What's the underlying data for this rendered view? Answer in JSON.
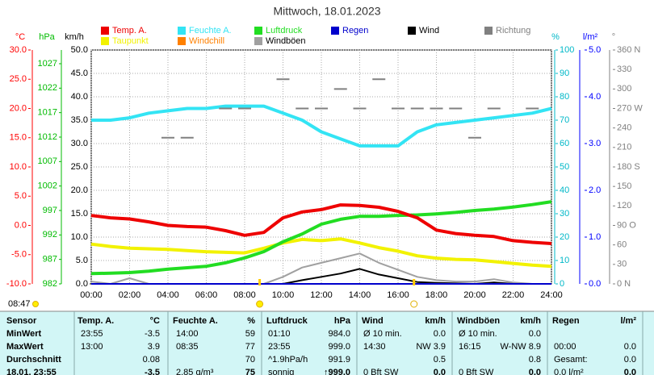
{
  "chart_data": {
    "type": "line",
    "title": "Mittwoch, 18.01.2023",
    "x": [
      0,
      1,
      2,
      3,
      4,
      5,
      6,
      7,
      8,
      9,
      10,
      11,
      12,
      13,
      14,
      15,
      16,
      17,
      18,
      19,
      20,
      21,
      22,
      23,
      24
    ],
    "xlim": [
      0,
      24
    ],
    "xticks": [
      {
        "value": 0,
        "label": "00:00"
      },
      {
        "value": 2,
        "label": "02:00"
      },
      {
        "value": 4,
        "label": "04:00"
      },
      {
        "value": 6,
        "label": "06:00"
      },
      {
        "value": 8,
        "label": "08:00"
      },
      {
        "value": 10,
        "label": "10:00"
      },
      {
        "value": 12,
        "label": "12:00"
      },
      {
        "value": 14,
        "label": "14:00"
      },
      {
        "value": 16,
        "label": "16:00"
      },
      {
        "value": 18,
        "label": "18:00"
      },
      {
        "value": 20,
        "label": "20:00"
      },
      {
        "value": 22,
        "label": "22:00"
      },
      {
        "value": 24,
        "label": "24:00"
      }
    ],
    "grid": true,
    "axes": {
      "temp": {
        "label": "°C",
        "color": "#ff0000",
        "ylim": [
          -10,
          30
        ],
        "yticks": [
          {
            "value": -10,
            "label": "-10.0"
          },
          {
            "value": -5,
            "label": "-5.0"
          },
          {
            "value": 0,
            "label": "0.0"
          },
          {
            "value": 5,
            "label": "5.0"
          },
          {
            "value": 10,
            "label": "10.0"
          },
          {
            "value": 15,
            "label": "15.0"
          },
          {
            "value": 20,
            "label": "20.0"
          },
          {
            "value": 25,
            "label": "25.0"
          },
          {
            "value": 30,
            "label": "30.0"
          }
        ]
      },
      "press": {
        "label": "hPa",
        "color": "#00bb00",
        "ylim": [
          982,
          1029.8
        ],
        "yticks": [
          982,
          987,
          992,
          997,
          1002,
          1007,
          1012,
          1017,
          1022,
          1027
        ]
      },
      "wind": {
        "label": "km/h",
        "color": "#000000",
        "ylim": [
          0,
          50
        ],
        "yticks": [
          {
            "value": 0,
            "label": "0.0"
          },
          {
            "value": 5,
            "label": "5.0"
          },
          {
            "value": 10,
            "label": "10.0"
          },
          {
            "value": 15,
            "label": "15.0"
          },
          {
            "value": 20,
            "label": "20.0"
          },
          {
            "value": 25,
            "label": "25.0"
          },
          {
            "value": 30,
            "label": "30.0"
          },
          {
            "value": 35,
            "label": "35.0"
          },
          {
            "value": 40,
            "label": "40.0"
          },
          {
            "value": 45,
            "label": "45.0"
          },
          {
            "value": 50,
            "label": "50.0"
          }
        ]
      },
      "hum": {
        "label": "%",
        "color": "#00b8c8",
        "ylim": [
          0,
          100
        ],
        "yticks": [
          0,
          10,
          20,
          30,
          40,
          50,
          60,
          70,
          80,
          90,
          100
        ]
      },
      "rain": {
        "label": "l/m²",
        "color": "#0000ff",
        "ylim": [
          0,
          5
        ],
        "yticks": [
          {
            "value": 0,
            "label": "0.0"
          },
          {
            "value": 1,
            "label": "1.0"
          },
          {
            "value": 2,
            "label": "2.0"
          },
          {
            "value": 3,
            "label": "3.0"
          },
          {
            "value": 4,
            "label": "4.0"
          },
          {
            "value": 5,
            "label": "5.0"
          }
        ]
      },
      "dir": {
        "label": "°",
        "color": "#808080",
        "ylim": [
          0,
          360
        ],
        "yticks": [
          {
            "value": 0,
            "label": "0 N"
          },
          30,
          60,
          {
            "value": 90,
            "label": "90 O"
          },
          120,
          150,
          {
            "value": 180,
            "label": "180 S"
          },
          210,
          240,
          {
            "value": 270,
            "label": "270 W"
          },
          300,
          330,
          {
            "value": 360,
            "label": "360 N"
          }
        ]
      }
    },
    "series": [
      {
        "name": "Temp. A.",
        "color": "#ee0000",
        "axis": "temp",
        "values": [
          1.7,
          1.3,
          1.1,
          0.6,
          0.0,
          -0.2,
          -0.3,
          -0.9,
          -1.7,
          -1.2,
          1.3,
          2.3,
          2.7,
          3.5,
          3.4,
          3.1,
          2.4,
          1.3,
          -0.8,
          -1.4,
          -1.7,
          -1.9,
          -2.6,
          -2.9,
          -3.1
        ]
      },
      {
        "name": "Feuchte A.",
        "color": "#33e4f4",
        "axis": "hum",
        "values": [
          70,
          70,
          71,
          73,
          74,
          75,
          75,
          76,
          76,
          76,
          73,
          70,
          65,
          62,
          59,
          59,
          59,
          65,
          68,
          69,
          70,
          71,
          72,
          73,
          75
        ]
      },
      {
        "name": "Luftdruck",
        "color": "#22dd22",
        "axis": "press",
        "values": [
          984.1,
          984.2,
          984.3,
          984.6,
          985.0,
          985.3,
          985.6,
          986.3,
          987.3,
          988.6,
          990.6,
          992.2,
          994.2,
          995.2,
          995.8,
          995.8,
          996.0,
          996.1,
          996.3,
          996.6,
          997.0,
          997.3,
          997.7,
          998.2,
          998.8
        ]
      },
      {
        "name": "Regen",
        "color": "#0000cc",
        "axis": "rain",
        "values": [
          0,
          0,
          0,
          0,
          0,
          0,
          0,
          0,
          0,
          0,
          0,
          0,
          0,
          0,
          0,
          0,
          0,
          0,
          0,
          0,
          0,
          0,
          0,
          0,
          0
        ]
      },
      {
        "name": "Wind",
        "color": "#000000",
        "axis": "wind",
        "values": [
          0,
          0,
          0,
          0,
          0,
          0,
          0,
          0,
          0,
          0,
          0,
          0.8,
          1.5,
          2.2,
          3.2,
          2.0,
          1.2,
          0.4,
          0.2,
          0.1,
          0,
          0.3,
          0,
          0,
          0
        ]
      },
      {
        "name": "Richtung",
        "color": "#808080",
        "axis": "dir",
        "style": "dash",
        "values": [
          null,
          null,
          null,
          null,
          225,
          225,
          null,
          270,
          270,
          null,
          315,
          270,
          270,
          300,
          270,
          315,
          270,
          270,
          270,
          270,
          225,
          270,
          null,
          270,
          null
        ]
      },
      {
        "name": "Taupunkt",
        "color": "#f2f200",
        "axis": "temp",
        "values": [
          -3.2,
          -3.6,
          -3.9,
          -4.0,
          -4.1,
          -4.3,
          -4.5,
          -4.6,
          -4.7,
          -3.9,
          -3.0,
          -2.4,
          -2.6,
          -2.3,
          -3.0,
          -3.8,
          -4.4,
          -5.2,
          -5.6,
          -5.8,
          -5.9,
          -6.2,
          -6.5,
          -6.8,
          -7.0
        ]
      },
      {
        "name": "Windchill",
        "color": "#ff8000",
        "axis": "temp"
      },
      {
        "name": "Windböen",
        "color": "#a0a0a0",
        "axis": "wind",
        "values": [
          0.5,
          0,
          1.2,
          0,
          0,
          0,
          0,
          0,
          0,
          0,
          1.5,
          3.5,
          4.5,
          5.5,
          6.5,
          4.5,
          3.0,
          1.5,
          0.8,
          0.5,
          0.5,
          1.0,
          0.3,
          0,
          0
        ]
      }
    ],
    "sunrise": {
      "label": "08:47",
      "x": 8.783
    },
    "sunset": {
      "x": 16.83
    }
  },
  "table": {
    "header": [
      "Sensor",
      "Temp. A.",
      "°C",
      "Feuchte A.",
      "%",
      "Luftdruck",
      "hPa",
      "Wind",
      "km/h",
      "Windböen",
      "km/h",
      "Regen",
      "l/m²"
    ],
    "rows": [
      [
        "MinWert",
        "23:55",
        "-3.5",
        "14:00",
        "59",
        "01:10",
        "984.0",
        "Ø 10 min.",
        "0.0",
        "Ø 10 min.",
        "0.0",
        null,
        null
      ],
      [
        "MaxWert",
        "13:00",
        "3.9",
        "08:35",
        "77",
        "23:55",
        "999.0",
        "14:30",
        "NW 3.9",
        "16:15",
        "W-NW 8.9",
        "00:00",
        "0.0"
      ],
      [
        "Durchschnitt",
        null,
        "0.08",
        null,
        "70",
        "^1.9hPa/h",
        "991.9",
        null,
        "0.5",
        null,
        "0.8",
        "Gesamt:",
        "0.0"
      ],
      [
        "18.01. 23:55",
        null,
        "-3.5",
        "2.85 g/m³",
        "75",
        "sonnig",
        "↑999.0",
        "0 Bft SW",
        "0.0",
        "0 Bft SW",
        "0.0",
        "0.0 l/m²",
        "0.0"
      ]
    ]
  }
}
